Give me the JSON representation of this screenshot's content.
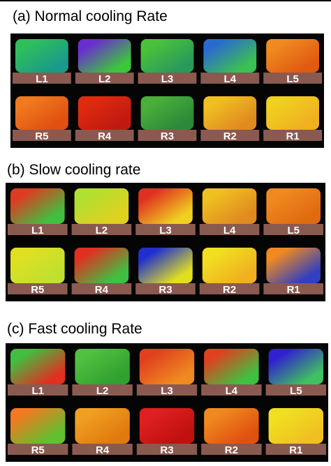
{
  "panels": [
    {
      "title": "(a) Normal cooling Rate",
      "rows": [
        [
          "L1",
          "L2",
          "L3",
          "L4",
          "L5"
        ],
        [
          "R5",
          "R4",
          "R3",
          "R2",
          "R1"
        ]
      ]
    },
    {
      "title": "(b)  Slow cooling rate",
      "rows": [
        [
          "L1",
          "L2",
          "L3",
          "L4",
          "L5"
        ],
        [
          "R5",
          "R4",
          "R3",
          "R2",
          "R1"
        ]
      ]
    },
    {
      "title": "(c)  Fast cooling Rate",
      "rows": [
        [
          "L1",
          "L2",
          "L3",
          "L4",
          "L5"
        ],
        [
          "R5",
          "R4",
          "R3",
          "R2",
          "R1"
        ]
      ]
    }
  ]
}
